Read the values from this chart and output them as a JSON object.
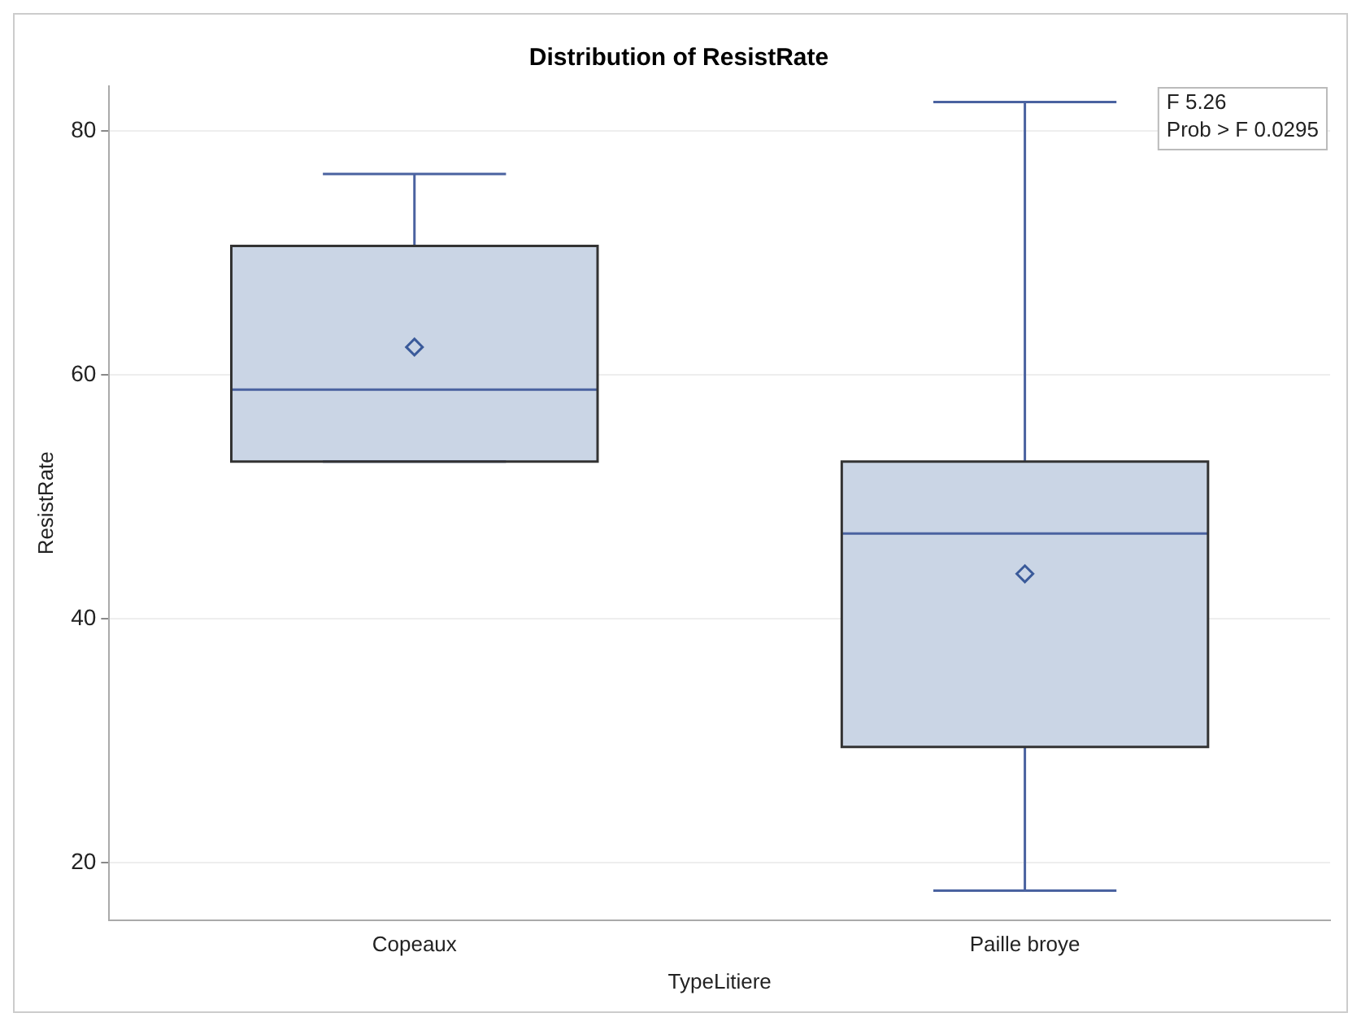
{
  "chart_data": {
    "type": "box",
    "title": "Distribution of ResistRate",
    "xlabel": "TypeLitiere",
    "ylabel": "ResistRate",
    "categories": [
      "Copeaux",
      "Paille broye"
    ],
    "color": "#cad5e5",
    "boxes": [
      {
        "low": 52.9,
        "q1": 52.9,
        "median": 58.8,
        "q3": 70.6,
        "high": 76.5,
        "mean": 62.3
      },
      {
        "low": 17.7,
        "q1": 29.5,
        "median": 47.0,
        "q3": 52.9,
        "high": 82.4,
        "mean": 43.7
      }
    ],
    "ylim": [
      15.3,
      83.7
    ],
    "yticks": [
      20,
      40,
      60,
      80
    ],
    "grid": "y",
    "legend": false,
    "marker": "diamond",
    "annotations": [
      "F 5.26",
      "Prob > F 0.0295"
    ]
  }
}
